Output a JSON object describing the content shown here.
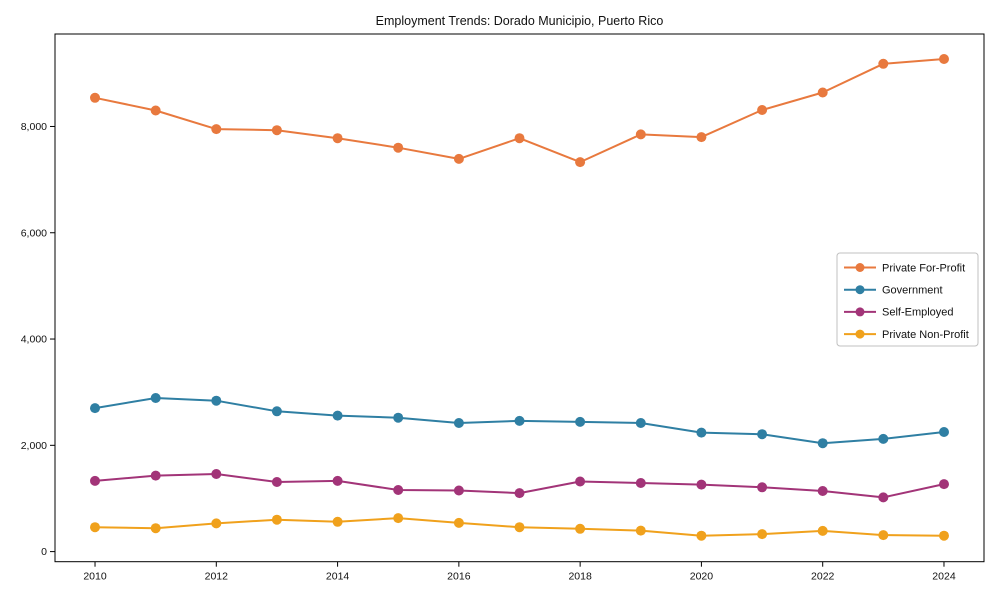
{
  "chart_data": {
    "type": "line",
    "title": "Employment Trends: Dorado Municipio, Puerto Rico",
    "xlabel": "",
    "ylabel": "",
    "x": [
      2010,
      2011,
      2012,
      2013,
      2014,
      2015,
      2016,
      2017,
      2018,
      2019,
      2020,
      2021,
      2022,
      2023,
      2024
    ],
    "series": [
      {
        "name": "Private For-Profit",
        "color": "#e8793e",
        "values": [
          8540,
          8300,
          7950,
          7930,
          7780,
          7600,
          7390,
          7780,
          7330,
          7850,
          7800,
          8310,
          8640,
          9180,
          9270
        ]
      },
      {
        "name": "Government",
        "color": "#2f7fa3",
        "values": [
          2700,
          2890,
          2840,
          2640,
          2560,
          2520,
          2420,
          2460,
          2440,
          2420,
          2240,
          2210,
          2040,
          2120,
          2250
        ]
      },
      {
        "name": "Self-Employed",
        "color": "#a23478",
        "values": [
          1330,
          1430,
          1460,
          1310,
          1330,
          1160,
          1150,
          1100,
          1320,
          1290,
          1260,
          1210,
          1140,
          1020,
          1270
        ]
      },
      {
        "name": "Private Non-Profit",
        "color": "#f0a11c",
        "values": [
          460,
          440,
          530,
          600,
          560,
          630,
          540,
          460,
          430,
          395,
          300,
          330,
          390,
          310,
          300
        ]
      }
    ],
    "xlim": [
      2009.34,
      2024.66
    ],
    "ylim": [
      -190,
      9740
    ],
    "xticks": [
      2010,
      2012,
      2014,
      2016,
      2018,
      2020,
      2022,
      2024
    ],
    "xtick_labels": [
      "2010",
      "2012",
      "2014",
      "2016",
      "2018",
      "2020",
      "2022",
      "2024"
    ],
    "yticks": [
      0,
      2000,
      4000,
      6000,
      8000
    ],
    "ytick_labels": [
      "0",
      "2,000",
      "4,000",
      "6,000",
      "8,000"
    ],
    "grid": false,
    "legend_position": "right-inside",
    "marker": "o",
    "axis_color": "#000000",
    "legend_border_color": "#c0c0c0"
  }
}
